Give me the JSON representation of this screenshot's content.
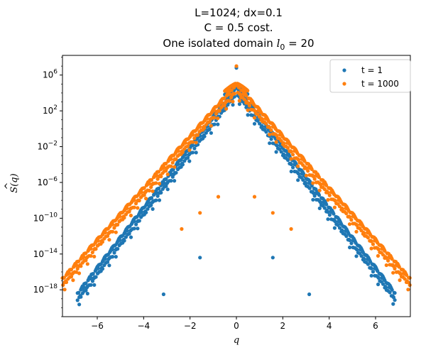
{
  "chart_data": {
    "type": "scatter",
    "title_lines": [
      "L=1024; dx=0.1",
      "C = 0.5 cost.",
      "One isolated domain "
    ],
    "title_math": {
      "symbol": "l",
      "subscript": "0",
      "rest": " = 20"
    },
    "xlabel": "q",
    "ylabel": "Ŝ(q)",
    "ylabel_parts": {
      "base": "S",
      "hat": "^",
      "arg": "(q)"
    },
    "xlim": [
      -7.5,
      7.5
    ],
    "ylim_log10": [
      -21,
      8.2
    ],
    "y_scale": "log",
    "x_ticks": [
      -6,
      -4,
      -2,
      0,
      2,
      4,
      6
    ],
    "x_tick_labels": [
      "−6",
      "−4",
      "−2",
      "0",
      "2",
      "4",
      "6"
    ],
    "y_ticks_log10": [
      6,
      2,
      -2,
      -6,
      -10,
      -14,
      -18
    ],
    "y_tick_labels": [
      {
        "base": "10",
        "exp": "6"
      },
      {
        "base": "10",
        "exp": "2"
      },
      {
        "base": "10",
        "exp": "−2"
      },
      {
        "base": "10",
        "exp": "−6"
      },
      {
        "base": "10",
        "exp": "−10"
      },
      {
        "base": "10",
        "exp": "−14"
      },
      {
        "base": "10",
        "exp": "−18"
      }
    ],
    "grid": false,
    "legend": "top-right",
    "series": [
      {
        "name": "t = 1",
        "color": "#1f77b4",
        "peak_log10": 4.8,
        "slope_log10_per_unit": 3.37,
        "x_extent": [
          -6.85,
          6.85
        ],
        "central_spike": [
          0,
          6.8
        ],
        "isolated_points": [
          [
            -3.14,
            -18.5
          ],
          [
            3.14,
            -18.5
          ],
          [
            -1.57,
            -14.4
          ],
          [
            1.57,
            -14.4
          ]
        ]
      },
      {
        "name": "t = 1000",
        "color": "#ff7f0e",
        "peak_log10": 5.1,
        "slope_log10_per_unit": 2.9,
        "x_extent": [
          -7.5,
          7.5
        ],
        "central_spike": [
          0,
          7.0
        ],
        "isolated_points": [
          [
            -1.57,
            -9.4
          ],
          [
            1.57,
            -9.4
          ],
          [
            -2.36,
            -11.2
          ],
          [
            2.36,
            -11.2
          ],
          [
            -0.78,
            -7.6
          ],
          [
            0.78,
            -7.6
          ]
        ]
      }
    ]
  }
}
